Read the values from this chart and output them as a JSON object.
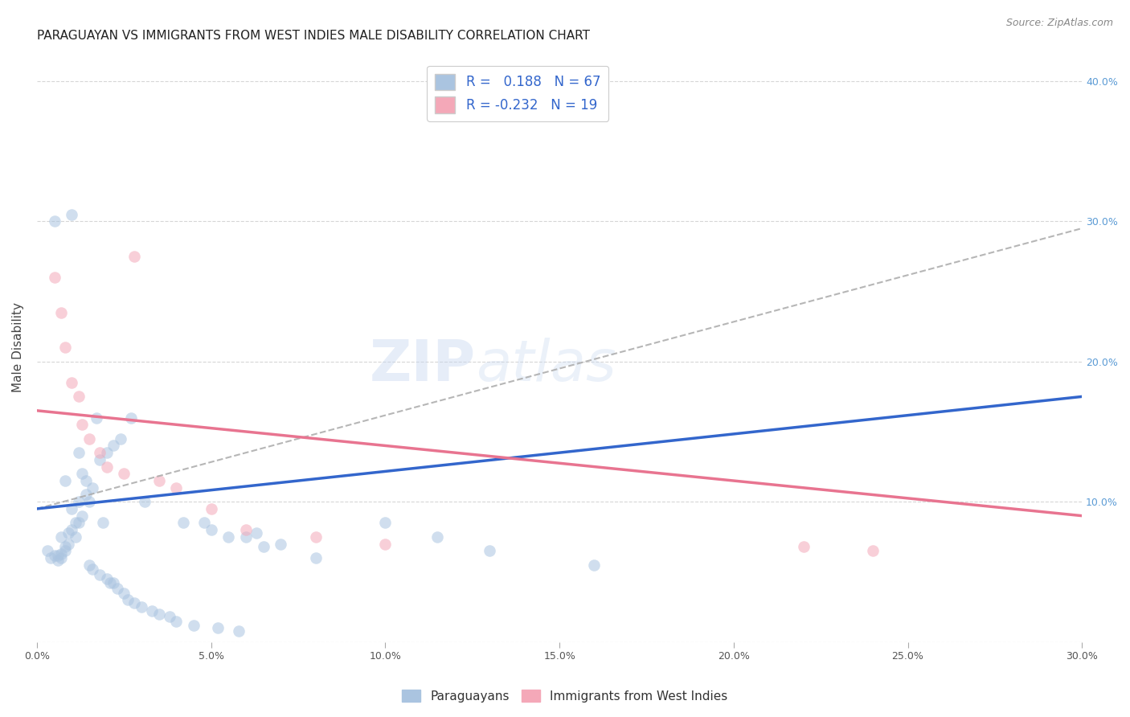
{
  "title": "PARAGUAYAN VS IMMIGRANTS FROM WEST INDIES MALE DISABILITY CORRELATION CHART",
  "source": "Source: ZipAtlas.com",
  "ylabel": "Male Disability",
  "watermark_zip": "ZIP",
  "watermark_atlas": "atlas",
  "xlim": [
    0.0,
    0.3
  ],
  "ylim": [
    0.0,
    0.42
  ],
  "xticks": [
    0.0,
    0.05,
    0.1,
    0.15,
    0.2,
    0.25,
    0.3
  ],
  "yticks": [
    0.0,
    0.1,
    0.2,
    0.3,
    0.4
  ],
  "ytick_labels": [
    "",
    "10.0%",
    "20.0%",
    "30.0%",
    "40.0%"
  ],
  "xtick_labels": [
    "0.0%",
    "5.0%",
    "10.0%",
    "15.0%",
    "20.0%",
    "25.0%",
    "30.0%"
  ],
  "legend_label1": "R =   0.188   N = 67",
  "legend_label2": "R = -0.232   N = 19",
  "legend_color1": "#aac4e0",
  "legend_color2": "#f4a8b8",
  "blue_scatter_x": [
    0.003,
    0.004,
    0.005,
    0.005,
    0.006,
    0.006,
    0.007,
    0.007,
    0.007,
    0.008,
    0.008,
    0.008,
    0.009,
    0.009,
    0.01,
    0.01,
    0.01,
    0.011,
    0.011,
    0.012,
    0.012,
    0.012,
    0.013,
    0.013,
    0.014,
    0.014,
    0.015,
    0.015,
    0.016,
    0.016,
    0.017,
    0.018,
    0.018,
    0.019,
    0.02,
    0.02,
    0.021,
    0.022,
    0.022,
    0.023,
    0.024,
    0.025,
    0.026,
    0.027,
    0.028,
    0.03,
    0.031,
    0.033,
    0.035,
    0.038,
    0.04,
    0.042,
    0.045,
    0.048,
    0.05,
    0.052,
    0.055,
    0.058,
    0.06,
    0.063,
    0.065,
    0.07,
    0.08,
    0.1,
    0.115,
    0.13,
    0.16
  ],
  "blue_scatter_y": [
    0.065,
    0.06,
    0.062,
    0.3,
    0.062,
    0.058,
    0.06,
    0.063,
    0.075,
    0.068,
    0.065,
    0.115,
    0.07,
    0.078,
    0.08,
    0.095,
    0.305,
    0.075,
    0.085,
    0.085,
    0.1,
    0.135,
    0.09,
    0.12,
    0.105,
    0.115,
    0.1,
    0.055,
    0.052,
    0.11,
    0.16,
    0.048,
    0.13,
    0.085,
    0.045,
    0.135,
    0.042,
    0.042,
    0.14,
    0.038,
    0.145,
    0.035,
    0.03,
    0.16,
    0.028,
    0.025,
    0.1,
    0.022,
    0.02,
    0.018,
    0.015,
    0.085,
    0.012,
    0.085,
    0.08,
    0.01,
    0.075,
    0.008,
    0.075,
    0.078,
    0.068,
    0.07,
    0.06,
    0.085,
    0.075,
    0.065,
    0.055
  ],
  "pink_scatter_x": [
    0.005,
    0.007,
    0.008,
    0.01,
    0.012,
    0.013,
    0.015,
    0.018,
    0.02,
    0.025,
    0.028,
    0.035,
    0.04,
    0.05,
    0.06,
    0.08,
    0.1,
    0.22,
    0.24
  ],
  "pink_scatter_y": [
    0.26,
    0.235,
    0.21,
    0.185,
    0.175,
    0.155,
    0.145,
    0.135,
    0.125,
    0.12,
    0.275,
    0.115,
    0.11,
    0.095,
    0.08,
    0.075,
    0.07,
    0.068,
    0.065
  ],
  "blue_line_x0": 0.0,
  "blue_line_x1": 0.3,
  "blue_line_y0": 0.095,
  "blue_line_y1": 0.175,
  "pink_line_x0": 0.0,
  "pink_line_x1": 0.3,
  "pink_line_y0": 0.165,
  "pink_line_y1": 0.09,
  "dashed_line_x0": 0.0,
  "dashed_line_x1": 0.3,
  "dashed_line_y0": 0.095,
  "dashed_line_y1": 0.295,
  "scatter_size": 110,
  "scatter_alpha": 0.55,
  "bg_color": "#ffffff",
  "grid_color": "#cccccc",
  "title_fontsize": 11,
  "axis_label_color": "#444444",
  "tick_label_color_right": "#5b9bd5",
  "legend_text_color": "#3366cc"
}
